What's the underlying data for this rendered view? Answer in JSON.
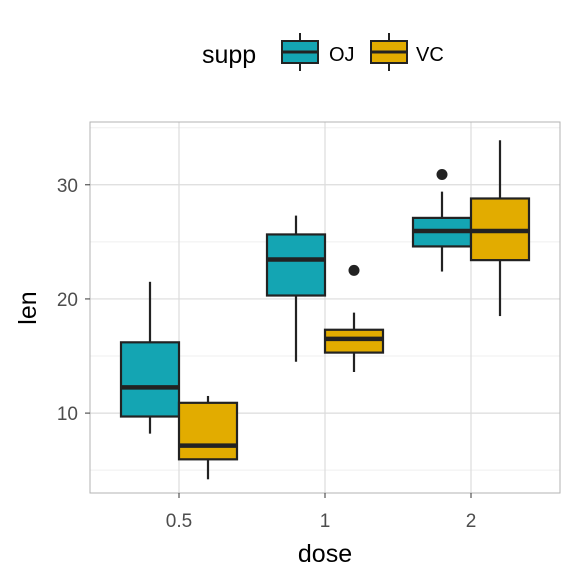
{
  "chart_data": {
    "type": "boxplot",
    "title": "",
    "xlabel": "dose",
    "ylabel": "len",
    "categories": [
      "0.5",
      "1",
      "2"
    ],
    "ylim": [
      3,
      35.5
    ],
    "y_ticks": [
      10,
      20,
      30
    ],
    "grid": true,
    "legend": {
      "title": "supp",
      "position": "top"
    },
    "series": [
      {
        "name": "OJ",
        "color": "#14a5b3",
        "boxes": [
          {
            "whisker_low": 8.2,
            "q1": 9.7,
            "median": 12.25,
            "q3": 16.2,
            "whisker_high": 21.5,
            "outliers": []
          },
          {
            "whisker_low": 14.5,
            "q1": 20.3,
            "median": 23.45,
            "q3": 25.65,
            "whisker_high": 27.3,
            "outliers": []
          },
          {
            "whisker_low": 22.4,
            "q1": 24.6,
            "median": 25.95,
            "q3": 27.1,
            "whisker_high": 29.4,
            "outliers": [
              30.9
            ]
          }
        ]
      },
      {
        "name": "VC",
        "color": "#e2ac00",
        "boxes": [
          {
            "whisker_low": 4.2,
            "q1": 5.95,
            "median": 7.15,
            "q3": 10.9,
            "whisker_high": 11.5,
            "outliers": []
          },
          {
            "whisker_low": 13.6,
            "q1": 15.3,
            "median": 16.5,
            "q3": 17.3,
            "whisker_high": 18.8,
            "outliers": [
              22.5
            ]
          },
          {
            "whisker_low": 18.5,
            "q1": 23.4,
            "median": 25.95,
            "q3": 28.8,
            "whisker_high": 33.9,
            "outliers": []
          }
        ]
      }
    ]
  },
  "theme": {
    "box_outline": "#222222",
    "grid_major": "#dcdcdc",
    "grid_minor": "#efefef",
    "panel_border": "#b3b3b3",
    "text": "#4d4d4d"
  }
}
